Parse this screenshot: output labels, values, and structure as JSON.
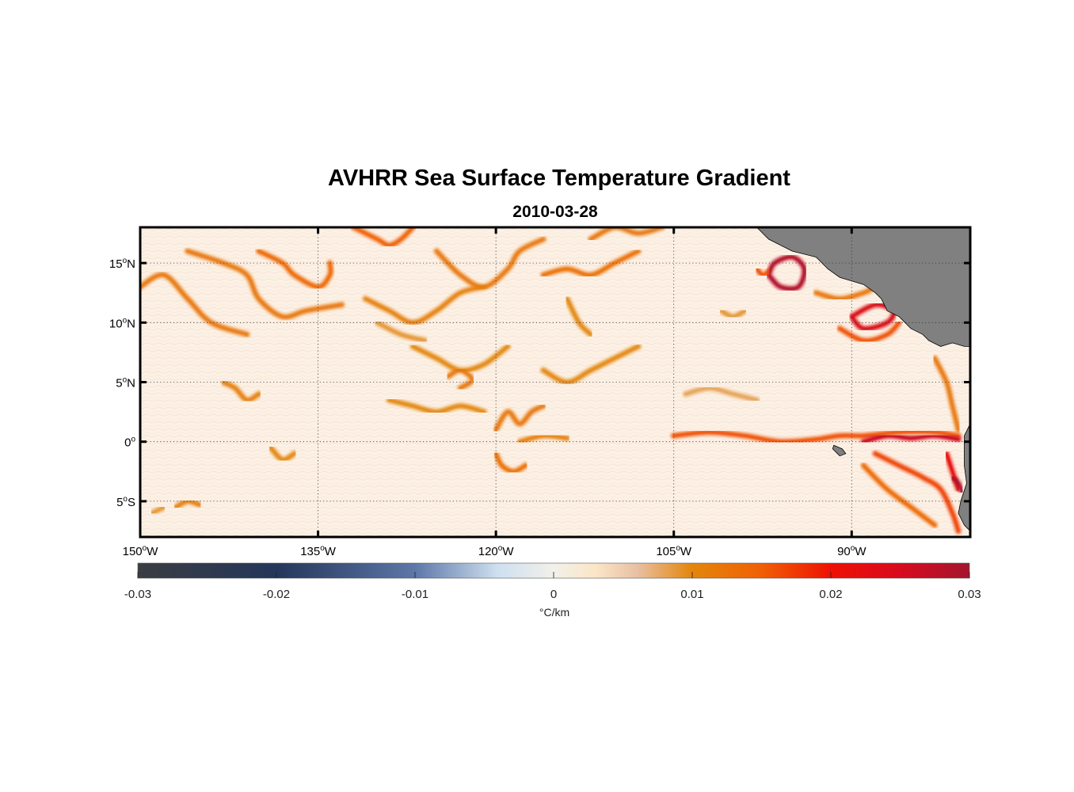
{
  "title": "AVHRR Sea Surface Temperature Gradient",
  "subtitle": "2010-03-28",
  "map": {
    "lon_range": [
      -150,
      -80
    ],
    "lat_range": [
      -8,
      18
    ],
    "lon_ticks": [
      {
        "value": -150,
        "num": "150",
        "hemi": "W"
      },
      {
        "value": -135,
        "num": "135",
        "hemi": "W"
      },
      {
        "value": -120,
        "num": "120",
        "hemi": "W"
      },
      {
        "value": -105,
        "num": "105",
        "hemi": "W"
      },
      {
        "value": -90,
        "num": "90",
        "hemi": "W"
      }
    ],
    "lat_ticks": [
      {
        "value": 15,
        "num": "15",
        "hemi": "N"
      },
      {
        "value": 10,
        "num": "10",
        "hemi": "N"
      },
      {
        "value": 5,
        "num": "5",
        "hemi": "N"
      },
      {
        "value": 0,
        "num": "0",
        "hemi": ""
      },
      {
        "value": -5,
        "num": "5",
        "hemi": "S"
      }
    ],
    "degree_symbol": "o",
    "land_color": "#808080",
    "ocean_base_color": "#fdf1e3",
    "gridlines": "dotted",
    "fronts": [
      {
        "lonlat": [
          [
            -150,
            13
          ],
          [
            -148,
            14
          ],
          [
            -146,
            12
          ],
          [
            -144,
            10
          ],
          [
            -141,
            9
          ]
        ],
        "intensity": 0.012
      },
      {
        "lonlat": [
          [
            -146,
            16
          ],
          [
            -143,
            15
          ],
          [
            -141,
            14
          ],
          [
            -140,
            12
          ],
          [
            -138,
            10.5
          ],
          [
            -136,
            11
          ],
          [
            -133,
            11.5
          ]
        ],
        "intensity": 0.012
      },
      {
        "lonlat": [
          [
            -140,
            16
          ],
          [
            -138,
            15
          ],
          [
            -137,
            14
          ],
          [
            -135,
            13
          ],
          [
            -134,
            14
          ],
          [
            -134,
            15
          ]
        ],
        "intensity": 0.014
      },
      {
        "lonlat": [
          [
            -132,
            18
          ],
          [
            -130,
            17
          ],
          [
            -129,
            16.5
          ],
          [
            -128,
            17
          ],
          [
            -127,
            18
          ]
        ],
        "intensity": 0.015
      },
      {
        "lonlat": [
          [
            -125,
            16
          ],
          [
            -123,
            14
          ],
          [
            -121,
            13
          ],
          [
            -119,
            14.5
          ],
          [
            -118,
            16
          ],
          [
            -116,
            17
          ]
        ],
        "intensity": 0.012
      },
      {
        "lonlat": [
          [
            -131,
            12
          ],
          [
            -129,
            11
          ],
          [
            -127,
            10
          ],
          [
            -125,
            11
          ],
          [
            -123,
            12.5
          ],
          [
            -121,
            13
          ]
        ],
        "intensity": 0.011
      },
      {
        "lonlat": [
          [
            -116,
            14
          ],
          [
            -114,
            14.5
          ],
          [
            -112,
            14
          ],
          [
            -110,
            15
          ],
          [
            -108,
            16
          ]
        ],
        "intensity": 0.013
      },
      {
        "lonlat": [
          [
            -112,
            17
          ],
          [
            -110,
            18
          ],
          [
            -108,
            17.5
          ],
          [
            -106,
            18
          ]
        ],
        "intensity": 0.012
      },
      {
        "lonlat": [
          [
            -127,
            8
          ],
          [
            -125,
            7
          ],
          [
            -123,
            6
          ],
          [
            -121,
            6.5
          ],
          [
            -119,
            8
          ]
        ],
        "intensity": 0.01
      },
      {
        "lonlat": [
          [
            -116,
            6
          ],
          [
            -114,
            5
          ],
          [
            -112,
            6
          ],
          [
            -110,
            7
          ],
          [
            -108,
            8
          ]
        ],
        "intensity": 0.01
      },
      {
        "lonlat": [
          [
            -130,
            10
          ],
          [
            -128,
            9
          ],
          [
            -126,
            8.5
          ]
        ],
        "intensity": 0.009
      },
      {
        "lonlat": [
          [
            -143,
            5
          ],
          [
            -142,
            4.5
          ],
          [
            -141,
            3.5
          ],
          [
            -140,
            4
          ]
        ],
        "intensity": 0.011
      },
      {
        "lonlat": [
          [
            -124,
            5.5
          ],
          [
            -123,
            6
          ],
          [
            -122,
            5.2
          ],
          [
            -123,
            4.5
          ]
        ],
        "intensity": 0.012
      },
      {
        "lonlat": [
          [
            -129,
            3.5
          ],
          [
            -127,
            3
          ],
          [
            -125,
            2.5
          ],
          [
            -123,
            3
          ],
          [
            -121,
            2.5
          ]
        ],
        "intensity": 0.01
      },
      {
        "lonlat": [
          [
            -120,
            1
          ],
          [
            -119,
            2.5
          ],
          [
            -118,
            1.5
          ],
          [
            -117,
            2.5
          ],
          [
            -116,
            3
          ]
        ],
        "intensity": 0.012
      },
      {
        "lonlat": [
          [
            -120,
            -1
          ],
          [
            -119.5,
            -2
          ],
          [
            -118.5,
            -2.5
          ],
          [
            -117.5,
            -2
          ]
        ],
        "intensity": 0.013
      },
      {
        "lonlat": [
          [
            -118,
            0
          ],
          [
            -116,
            0.5
          ],
          [
            -114,
            0.3
          ]
        ],
        "intensity": 0.011
      },
      {
        "lonlat": [
          [
            -105,
            0.5
          ],
          [
            -102,
            0.8
          ],
          [
            -99,
            0.5
          ],
          [
            -96,
            0
          ],
          [
            -93,
            0.2
          ],
          [
            -91,
            0.5
          ],
          [
            -89,
            0.5
          ],
          [
            -86,
            0.8
          ],
          [
            -83,
            0.8
          ],
          [
            -81,
            0.5
          ]
        ],
        "intensity": 0.016
      },
      {
        "lonlat": [
          [
            -89,
            0
          ],
          [
            -87,
            0.5
          ],
          [
            -85,
            0.3
          ],
          [
            -83,
            0.5
          ],
          [
            -81,
            0.2
          ]
        ],
        "intensity": 0.024
      },
      {
        "lonlat": [
          [
            -88,
            -1
          ],
          [
            -86,
            -2
          ],
          [
            -84,
            -3
          ],
          [
            -82.5,
            -4
          ],
          [
            -81.5,
            -6
          ],
          [
            -81,
            -7.5
          ]
        ],
        "intensity": 0.017
      },
      {
        "lonlat": [
          [
            -89,
            -2
          ],
          [
            -87,
            -4
          ],
          [
            -85,
            -5.5
          ],
          [
            -83,
            -7
          ]
        ],
        "intensity": 0.014
      },
      {
        "lonlat": [
          [
            -82,
            -1
          ],
          [
            -81.5,
            -2.5
          ],
          [
            -81,
            -4
          ]
        ],
        "intensity": 0.02
      },
      {
        "lonlat": [
          [
            -81.5,
            -3
          ],
          [
            -81,
            -3.5
          ],
          [
            -80.7,
            -4.2
          ]
        ],
        "intensity": 0.028
      },
      {
        "lonlat": [
          [
            -90,
            10.5
          ],
          [
            -89,
            9.5
          ],
          [
            -87,
            10
          ],
          [
            -86.5,
            11
          ],
          [
            -88,
            11.5
          ],
          [
            -90,
            10.5
          ]
        ],
        "intensity": 0.022
      },
      {
        "lonlat": [
          [
            -91,
            9.5
          ],
          [
            -89,
            8.5
          ],
          [
            -87,
            9
          ],
          [
            -86,
            10
          ]
        ],
        "intensity": 0.016
      },
      {
        "lonlat": [
          [
            -97,
            14
          ],
          [
            -96,
            13
          ],
          [
            -94.5,
            13
          ],
          [
            -94,
            14.5
          ],
          [
            -95,
            15.5
          ],
          [
            -96.5,
            15
          ],
          [
            -97,
            14
          ]
        ],
        "intensity": 0.027
      },
      {
        "lonlat": [
          [
            -98,
            14.5
          ],
          [
            -97.5,
            14
          ],
          [
            -97,
            14.3
          ]
        ],
        "intensity": 0.016
      },
      {
        "lonlat": [
          [
            -93,
            12.5
          ],
          [
            -91,
            12
          ],
          [
            -89,
            12.5
          ],
          [
            -88,
            13
          ]
        ],
        "intensity": 0.012
      },
      {
        "lonlat": [
          [
            -83,
            7
          ],
          [
            -82,
            5
          ],
          [
            -81.5,
            3
          ],
          [
            -81,
            1
          ]
        ],
        "intensity": 0.012
      },
      {
        "lonlat": [
          [
            -104,
            4
          ],
          [
            -102,
            4.5
          ],
          [
            -100,
            4
          ],
          [
            -98,
            3.5
          ]
        ],
        "intensity": 0.008
      },
      {
        "lonlat": [
          [
            -147,
            -5.5
          ],
          [
            -146,
            -5
          ],
          [
            -145,
            -5.3
          ]
        ],
        "intensity": 0.011
      },
      {
        "lonlat": [
          [
            -149,
            -6
          ],
          [
            -148,
            -5.5
          ]
        ],
        "intensity": 0.009
      },
      {
        "lonlat": [
          [
            -139,
            -0.5
          ],
          [
            -138,
            -1.5
          ],
          [
            -137,
            -1
          ]
        ],
        "intensity": 0.01
      },
      {
        "lonlat": [
          [
            -114,
            12
          ],
          [
            -113,
            10
          ],
          [
            -112,
            9
          ]
        ],
        "intensity": 0.01
      },
      {
        "lonlat": [
          [
            -101,
            11
          ],
          [
            -100,
            10.5
          ],
          [
            -99,
            11
          ]
        ],
        "intensity": 0.009
      }
    ],
    "land": [
      {
        "name": "mexico-central-america",
        "lonlat": [
          [
            -98,
            18
          ],
          [
            -97,
            17
          ],
          [
            -95,
            16
          ],
          [
            -93,
            15.5
          ],
          [
            -92,
            14.5
          ],
          [
            -91,
            13.8
          ],
          [
            -89,
            13.2
          ],
          [
            -88,
            12.5
          ],
          [
            -87.5,
            12
          ],
          [
            -87,
            11
          ],
          [
            -86,
            10.5
          ],
          [
            -85.5,
            10
          ],
          [
            -85,
            9.5
          ],
          [
            -84,
            9
          ],
          [
            -83.5,
            8.5
          ],
          [
            -82.5,
            8
          ],
          [
            -81.5,
            8.3
          ],
          [
            -80.5,
            8
          ],
          [
            -80,
            8
          ],
          [
            -80,
            18
          ]
        ]
      },
      {
        "name": "south-america-coast",
        "lonlat": [
          [
            -80,
            1.5
          ],
          [
            -80.5,
            0.5
          ],
          [
            -80.5,
            -2
          ],
          [
            -80.3,
            -3.5
          ],
          [
            -80.8,
            -5
          ],
          [
            -81,
            -6
          ],
          [
            -80.5,
            -7
          ],
          [
            -80,
            -7.5
          ],
          [
            -80,
            1.5
          ]
        ]
      },
      {
        "name": "galapagos",
        "lonlat": [
          [
            -91.5,
            -0.3
          ],
          [
            -90.8,
            -0.6
          ],
          [
            -90.5,
            -1
          ],
          [
            -91,
            -1.2
          ],
          [
            -91.3,
            -0.9
          ],
          [
            -91.6,
            -0.6
          ]
        ]
      }
    ]
  },
  "colorbar": {
    "range": [
      -0.03,
      0.03
    ],
    "ticks": [
      "-0.03",
      "-0.02",
      "-0.01",
      "0",
      "0.01",
      "0.02",
      "0.03"
    ],
    "tick_values": [
      -0.03,
      -0.02,
      -0.01,
      0,
      0.01,
      0.02,
      0.03
    ],
    "unit_label": "°C/km",
    "colors": [
      {
        "v": -0.03,
        "c": "#3a3d42"
      },
      {
        "v": -0.02,
        "c": "#24365a"
      },
      {
        "v": -0.01,
        "c": "#5d77a8"
      },
      {
        "v": -0.004,
        "c": "#cfe0f0"
      },
      {
        "v": 0,
        "c": "#f2f0ea"
      },
      {
        "v": 0.003,
        "c": "#fbe6c6"
      },
      {
        "v": 0.006,
        "c": "#e9c0a4"
      },
      {
        "v": 0.01,
        "c": "#e3860a"
      },
      {
        "v": 0.015,
        "c": "#f05f05"
      },
      {
        "v": 0.02,
        "c": "#ee1104"
      },
      {
        "v": 0.025,
        "c": "#d80a1e"
      },
      {
        "v": 0.03,
        "c": "#a3162f"
      }
    ]
  }
}
